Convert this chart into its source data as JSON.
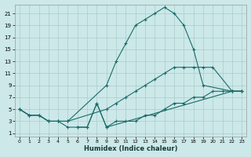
{
  "xlabel": "Humidex (Indice chaleur)",
  "bg_color": "#cce8e8",
  "grid_color": "#aacccc",
  "line_color": "#1a6b6b",
  "xlim": [
    -0.5,
    23.5
  ],
  "ylim": [
    0.5,
    22.5
  ],
  "xticks": [
    0,
    1,
    2,
    3,
    4,
    5,
    6,
    7,
    8,
    9,
    10,
    11,
    12,
    13,
    14,
    15,
    16,
    17,
    18,
    19,
    20,
    21,
    22,
    23
  ],
  "yticks": [
    1,
    3,
    5,
    7,
    9,
    11,
    13,
    15,
    17,
    19,
    21
  ],
  "series_top_x": [
    0,
    1,
    2,
    3,
    4,
    5,
    9,
    10,
    11,
    12,
    13,
    14,
    15,
    16,
    17,
    18,
    19,
    22,
    23
  ],
  "series_top_y": [
    5,
    4,
    4,
    3,
    3,
    3,
    9,
    13,
    16,
    19,
    20,
    21,
    22,
    21,
    19,
    15,
    9,
    8,
    8
  ],
  "series_mid_x": [
    0,
    1,
    2,
    3,
    4,
    5,
    9,
    10,
    11,
    12,
    13,
    14,
    15,
    16,
    17,
    18,
    19,
    20,
    22,
    23
  ],
  "series_mid_y": [
    5,
    4,
    4,
    3,
    3,
    3,
    5,
    6,
    7,
    8,
    9,
    10,
    11,
    12,
    12,
    12,
    12,
    12,
    8,
    8
  ],
  "series_bot_x": [
    0,
    1,
    2,
    3,
    4,
    5,
    6,
    7,
    8,
    9,
    22,
    23
  ],
  "series_bot_y": [
    5,
    4,
    4,
    3,
    3,
    2,
    2,
    2,
    6,
    2,
    8,
    8
  ],
  "series_bot2_x": [
    6,
    7,
    8,
    9,
    10,
    11,
    12,
    13,
    14,
    15,
    16,
    17,
    18,
    19,
    20,
    21,
    22,
    23
  ],
  "series_bot2_y": [
    2,
    2,
    6,
    2,
    3,
    3,
    3,
    4,
    4,
    5,
    6,
    6,
    7,
    7,
    8,
    8,
    8,
    8
  ]
}
